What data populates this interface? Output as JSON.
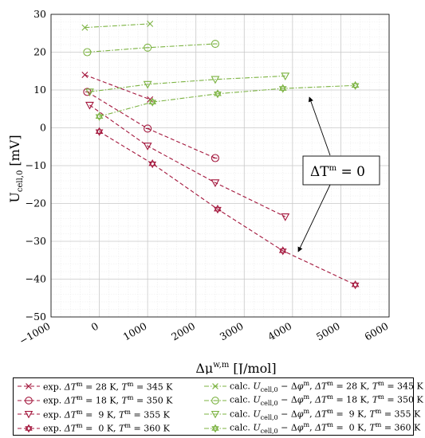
{
  "chart_data": {
    "type": "line",
    "xlabel": "Δμ^{w,m} [J/mol]",
    "ylabel": "U_{cell,0} [mV]",
    "xlim": [
      -1000,
      6000
    ],
    "ylim": [
      -50,
      30
    ],
    "xticks": [
      "−1000",
      "0",
      "1000",
      "2000",
      "3000",
      "4000",
      "5000",
      "6000"
    ],
    "yticks": [
      "30",
      "20",
      "10",
      "0",
      "−10",
      "−20",
      "−30",
      "−40",
      "−50"
    ],
    "grid": true,
    "minor_grid": true,
    "legend_placement": "below",
    "annotation": "ΔT^m = 0",
    "colors": {
      "exp": "#a3163c",
      "calc": "#7cb342"
    },
    "series": [
      {
        "name": "exp. ΔT^m = 28 K, T^m = 345 K",
        "group": "exp",
        "marker": "x",
        "x": [
          -300,
          1050
        ],
        "y": [
          14.0,
          7.5
        ]
      },
      {
        "name": "exp. ΔT^m = 18 K, T^m = 350 K",
        "group": "exp",
        "marker": "circle",
        "x": [
          -250,
          1000,
          2400
        ],
        "y": [
          9.5,
          -0.2,
          -8.0
        ]
      },
      {
        "name": "exp. ΔT^m = 9 K, T^m = 355 K",
        "group": "exp",
        "marker": "triangle",
        "x": [
          -200,
          1000,
          2400,
          3850
        ],
        "y": [
          6.0,
          -4.8,
          -14.5,
          -23.5
        ]
      },
      {
        "name": "exp. ΔT^m = 0 K, T^m = 360 K",
        "group": "exp",
        "marker": "star",
        "x": [
          0,
          1100,
          2450,
          3800,
          5300
        ],
        "y": [
          -1.0,
          -9.5,
          -21.5,
          -32.5,
          -41.5
        ]
      },
      {
        "name": "calc. U_cell,0 − Δφ^m, ΔT^m = 28 K, T^m = 345 K",
        "group": "calc",
        "marker": "x",
        "x": [
          -300,
          1050
        ],
        "y": [
          26.5,
          27.5
        ]
      },
      {
        "name": "calc. U_cell,0 − Δφ^m, ΔT^m = 18 K, T^m = 350 K",
        "group": "calc",
        "marker": "circle",
        "x": [
          -250,
          1000,
          2400
        ],
        "y": [
          20.0,
          21.2,
          22.2
        ]
      },
      {
        "name": "calc. U_cell,0 − Δφ^m, ΔT^m = 9 K, T^m = 355 K",
        "group": "calc",
        "marker": "triangle",
        "x": [
          -200,
          1000,
          2400,
          3850
        ],
        "y": [
          9.5,
          11.5,
          12.8,
          13.7
        ]
      },
      {
        "name": "calc. U_cell,0 − Δφ^m, ΔT^m = 0 K, T^m = 360 K",
        "group": "calc",
        "marker": "star",
        "x": [
          0,
          1100,
          2450,
          3800,
          5300
        ],
        "y": [
          3.0,
          6.8,
          9.0,
          10.4,
          11.2
        ]
      }
    ]
  },
  "legend": {
    "exp": [
      {
        "prefix": "exp. ",
        "dt": "ΔT",
        "m1": "m",
        "mid": " = 28 K, ",
        "t": "T",
        "m2": "m",
        "end": " = 345 K"
      },
      {
        "prefix": "exp. ",
        "dt": "ΔT",
        "m1": "m",
        "mid": " = 18 K, ",
        "t": "T",
        "m2": "m",
        "end": " = 350 K"
      },
      {
        "prefix": "exp. ",
        "dt": "ΔT",
        "m1": "m",
        "mid": " =  9 K, ",
        "t": "T",
        "m2": "m",
        "end": " = 355 K"
      },
      {
        "prefix": "exp. ",
        "dt": "ΔT",
        "m1": "m",
        "mid": " =  0 K, ",
        "t": "T",
        "m2": "m",
        "end": " = 360 K"
      }
    ],
    "calc": [
      {
        "prefix": "calc. ",
        "u": "U",
        "usub": "cell,0",
        "minus": " − Δ",
        "phi": "φ",
        "phim": "m",
        "comma": ", ",
        "dt": "ΔT",
        "m1": "m",
        "mid": " = 28 K, ",
        "t": "T",
        "m2": "m",
        "end": " = 345 K"
      },
      {
        "prefix": "calc. ",
        "u": "U",
        "usub": "cell,0",
        "minus": " − Δ",
        "phi": "φ",
        "phim": "m",
        "comma": ", ",
        "dt": "ΔT",
        "m1": "m",
        "mid": " = 18 K, ",
        "t": "T",
        "m2": "m",
        "end": " = 350 K"
      },
      {
        "prefix": "calc. ",
        "u": "U",
        "usub": "cell,0",
        "minus": " − Δ",
        "phi": "φ",
        "phim": "m",
        "comma": ", ",
        "dt": "ΔT",
        "m1": "m",
        "mid": " =  9 K, ",
        "t": "T",
        "m2": "m",
        "end": " = 355 K"
      },
      {
        "prefix": "calc. ",
        "u": "U",
        "usub": "cell,0",
        "minus": " − Δ",
        "phi": "φ",
        "phim": "m",
        "comma": ", ",
        "dt": "ΔT",
        "m1": "m",
        "mid": " =  0 K, ",
        "t": "T",
        "m2": "m",
        "end": " = 360 K"
      }
    ]
  },
  "axis_title_parts": {
    "y_main": "U",
    "y_sub": "cell,0",
    "y_unit": " [mV]",
    "x_main": "Δμ",
    "x_sup": "w,m",
    "x_unit": " [J/mol]"
  },
  "annotation_parts": {
    "main": "ΔT",
    "sup": "m",
    "end": " = 0"
  }
}
